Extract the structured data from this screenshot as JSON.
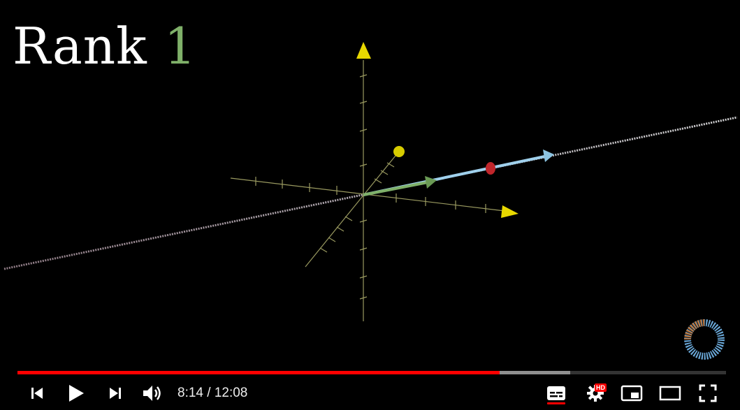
{
  "video": {
    "overlay_title_word": "Rank",
    "overlay_title_number": "1",
    "played_fraction": 0.68,
    "buffered_fraction": 0.78
  },
  "controls": {
    "current_time": "8:14",
    "separator": " / ",
    "duration": "12:08",
    "icons": {
      "previous": "skip-previous-icon",
      "play": "play-icon",
      "next": "skip-next-icon",
      "volume": "volume-icon",
      "subtitles": "subtitles-icon",
      "settings": "settings-gear-icon",
      "miniplayer": "miniplayer-icon",
      "theater": "theater-mode-icon",
      "fullscreen": "fullscreen-icon"
    },
    "hd_badge": "HD"
  },
  "colors": {
    "progress_played": "#ff0000",
    "title_number": "#7fb069",
    "axis": "#c8c87a",
    "arrow_green": "#7fb069",
    "arrow_blue": "#9fd0ec",
    "axis_tip": "#e8d800"
  }
}
